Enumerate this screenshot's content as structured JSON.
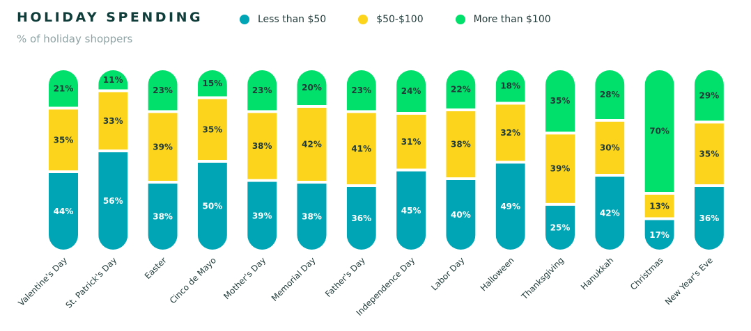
{
  "chart_data": {
    "type": "bar",
    "stacked": true,
    "title": "HOLIDAY SPENDING",
    "subtitle": "% of holiday shoppers",
    "categories": [
      "Valentine's Day",
      "St. Patrick's Day",
      "Easter",
      "Cinco de Mayo",
      "Mother's Day",
      "Memorial Day",
      "Father's Day",
      "Independence Day",
      "Labor Day",
      "Halloween",
      "Thanksgiving",
      "Hanukkah",
      "Christmas",
      "New Year's Eve"
    ],
    "series": [
      {
        "name": "Less than $50",
        "color": "#00a5b5",
        "label_color": "#ffffff",
        "values": [
          44,
          56,
          38,
          50,
          39,
          38,
          36,
          45,
          40,
          49,
          25,
          42,
          17,
          36
        ]
      },
      {
        "name": "$50-$100",
        "color": "#fcd41c",
        "label_color": "#1f3a38",
        "values": [
          35,
          33,
          39,
          35,
          38,
          42,
          41,
          31,
          38,
          32,
          39,
          30,
          13,
          35
        ]
      },
      {
        "name": "More than $100",
        "color": "#00e06b",
        "label_color": "#1f3a38",
        "values": [
          21,
          11,
          23,
          15,
          23,
          20,
          23,
          24,
          22,
          18,
          35,
          28,
          70,
          29
        ]
      }
    ],
    "value_suffix": "%",
    "legend_position": "top",
    "ylim": [
      0,
      100
    ],
    "grid": false
  }
}
